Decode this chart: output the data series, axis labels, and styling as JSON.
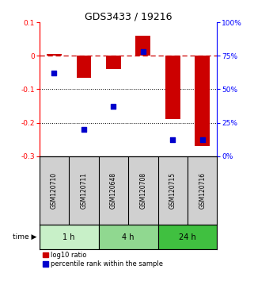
{
  "title": "GDS3433 / 19216",
  "samples": [
    "GSM120710",
    "GSM120711",
    "GSM120648",
    "GSM120708",
    "GSM120715",
    "GSM120716"
  ],
  "log10_ratio": [
    0.005,
    -0.065,
    -0.04,
    0.06,
    -0.19,
    -0.27
  ],
  "percentile_rank": [
    62,
    20,
    37,
    78,
    12,
    12
  ],
  "groups": [
    {
      "label": "1 h",
      "start": 0,
      "end": 2,
      "color": "#c8f0c8"
    },
    {
      "label": "4 h",
      "start": 2,
      "end": 4,
      "color": "#90d890"
    },
    {
      "label": "24 h",
      "start": 4,
      "end": 6,
      "color": "#40c040"
    }
  ],
  "ylim_left": [
    -0.3,
    0.1
  ],
  "ylim_right": [
    0,
    100
  ],
  "yticks_left": [
    0.1,
    0.0,
    -0.1,
    -0.2,
    -0.3
  ],
  "yticks_right": [
    100,
    75,
    50,
    25,
    0
  ],
  "bar_color": "#cc0000",
  "dot_color": "#0000cc",
  "hline_color": "#cc0000",
  "dotline_y": [
    -0.1,
    -0.2
  ],
  "bar_width": 0.5,
  "dot_size": 20,
  "background_color": "#ffffff",
  "tick_fontsize": 6.5,
  "title_fontsize": 9,
  "sample_fontsize": 5.5,
  "group_fontsize": 7,
  "legend_fontsize": 6,
  "sample_bg": "#d0d0d0"
}
